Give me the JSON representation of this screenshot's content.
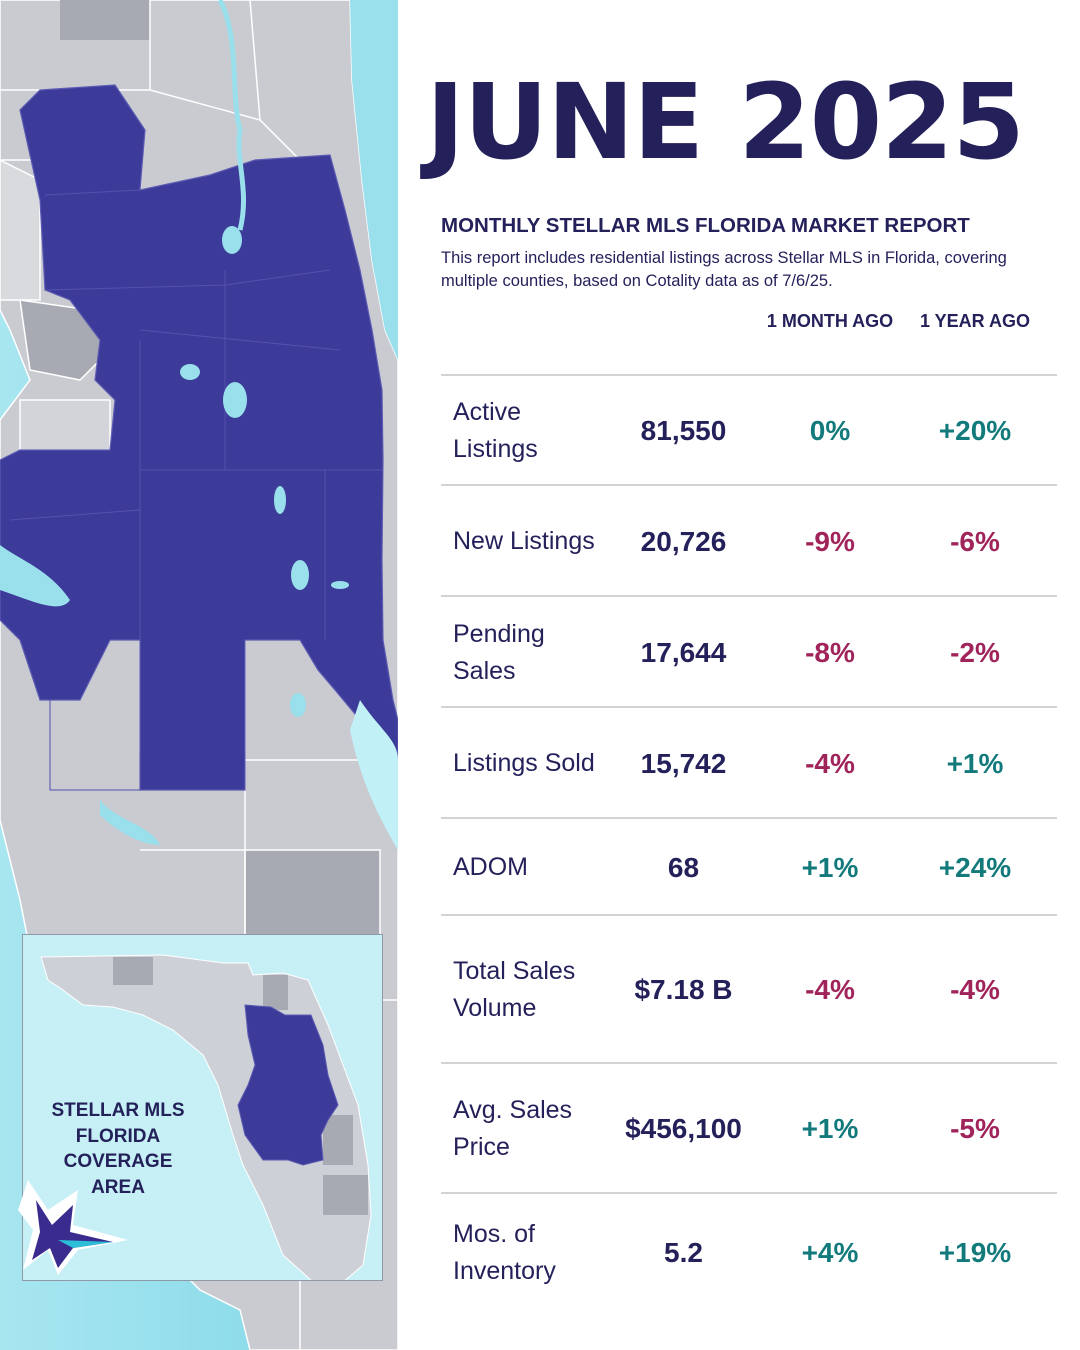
{
  "title": "JUNE 2025",
  "subtitle": "MONTHLY STELLAR MLS FLORIDA MARKET REPORT",
  "description": "This report includes residential listings across Stellar MLS in Florida, covering multiple counties, based on Cotality data as of 7/6/25.",
  "columns": {
    "month": "1 MONTH AGO",
    "year": "1 YEAR AGO"
  },
  "rows": [
    {
      "label": "Active Listings",
      "value": "81,550",
      "month": "0%",
      "year": "+20%"
    },
    {
      "label": "New Listings",
      "value": "20,726",
      "month": "-9%",
      "year": "-6%"
    },
    {
      "label": "Pending Sales",
      "value": "17,644",
      "month": "-8%",
      "year": "-2%"
    },
    {
      "label": "Listings Sold",
      "value": "15,742",
      "month": "-4%",
      "year": "+1%"
    },
    {
      "label": "ADOM",
      "value": "68",
      "month": "+1%",
      "year": "+24%"
    },
    {
      "label": "Total Sales Volume",
      "value": "$7.18 B",
      "month": "-4%",
      "year": "-4%"
    },
    {
      "label": "Avg. Sales Price",
      "value": "$456,100",
      "month": "+1%",
      "year": "-5%"
    },
    {
      "label": "Mos. of Inventory",
      "value": "5.2",
      "month": "+4%",
      "year": "+19%"
    }
  ],
  "inset_label": "STELLAR MLS FLORIDA COVERAGE AREA",
  "colors": {
    "navy": "#24215a",
    "coverage": "#3d3b99",
    "water": "#9ae0ec",
    "land": "#c9cbd1",
    "positive": "#137a7c",
    "negative": "#a0235a"
  }
}
